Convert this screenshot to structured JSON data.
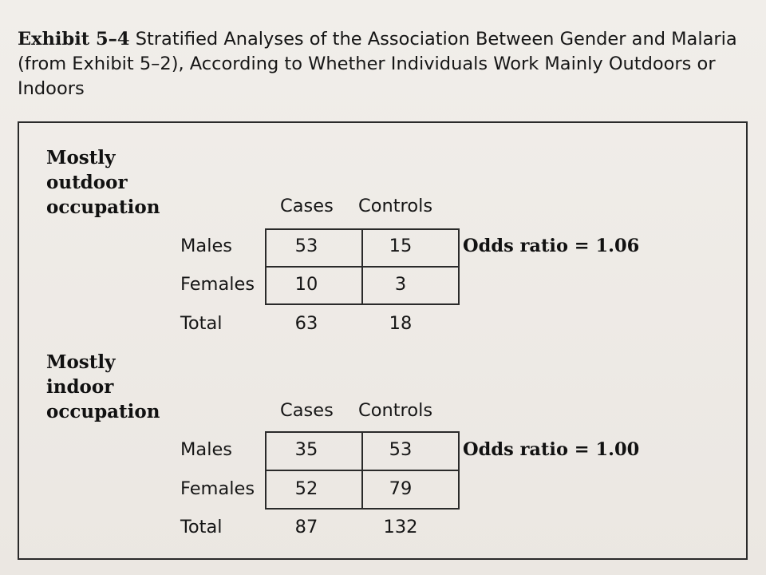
{
  "caption": {
    "lead": "Exhibit 5–4",
    "text": " Stratified Analyses of the Association Between Gender and Malaria (from Exhibit 5–2), According to Whether Individuals Work Mainly Outdoors or Indoors"
  },
  "column_headers": {
    "cases": "Cases",
    "controls": "Controls"
  },
  "row_labels": {
    "males": "Males",
    "females": "Females",
    "total": "Total"
  },
  "strata": [
    {
      "title_lines": [
        "Mostly",
        "outdoor",
        "occupation"
      ],
      "males": {
        "cases": "53",
        "controls": "15"
      },
      "females": {
        "cases": "10",
        "controls": "3"
      },
      "total": {
        "cases": "63",
        "controls": "18"
      },
      "odds_ratio": "Odds ratio = 1.06"
    },
    {
      "title_lines": [
        "Mostly",
        "indoor",
        "occupation"
      ],
      "males": {
        "cases": "35",
        "controls": "53"
      },
      "females": {
        "cases": "52",
        "controls": "79"
      },
      "total": {
        "cases": "87",
        "controls": "132"
      },
      "odds_ratio": "Odds ratio = 1.00"
    }
  ]
}
